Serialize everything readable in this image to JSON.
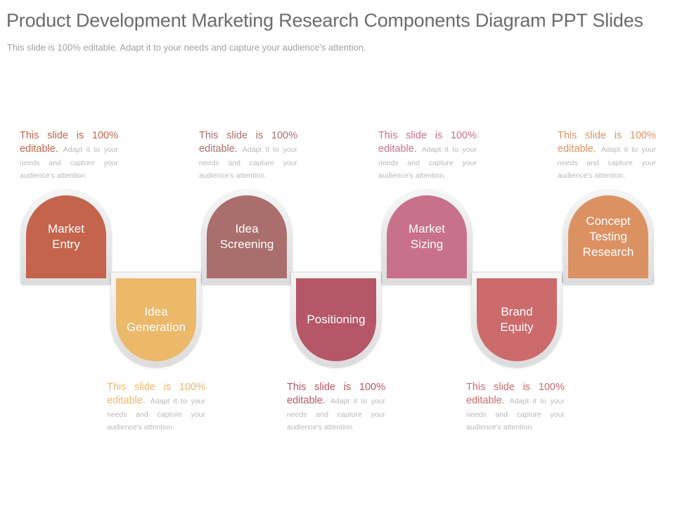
{
  "header": {
    "title": "Product Development Marketing Research Components Diagram PPT Slides",
    "subtitle": "This slide is 100% editable. Adapt it to your needs and capture your audience's attention."
  },
  "steps": [
    {
      "label": "Market\nEntry",
      "color": "#c4644c",
      "desc_lead": "This slide is 100% editable.",
      "desc_rest": "Adapt it to your needs and capture your audience's attention."
    },
    {
      "label": "Idea\nGeneration",
      "color": "#ecb86a",
      "desc_lead": "This slide is 100% editable.",
      "desc_rest": "Adapt it to your needs and capture your audience's attention."
    },
    {
      "label": "Idea\nScreening",
      "color": "#aa6e6c",
      "desc_lead": "This slide is 100% editable.",
      "desc_rest": "Adapt it to your needs and capture your audience's attention."
    },
    {
      "label": "Positioning",
      "color": "#b55766",
      "desc_lead": "This slide is 100% editable.",
      "desc_rest": "Adapt it to your needs and capture your audience's attention."
    },
    {
      "label": "Market\nSizing",
      "color": "#c8718a",
      "desc_lead": "This slide is 100% editable.",
      "desc_rest": "Adapt it to your needs and capture your audience's attention."
    },
    {
      "label": "Brand\nEquity",
      "color": "#cc6b6b",
      "desc_lead": "This slide is 100% editable.",
      "desc_rest": "Adapt it to your needs and capture your audience's attention."
    },
    {
      "label": "Concept\nTesting\nResearch",
      "color": "#dc9163",
      "desc_lead": "This slide is 100% editable.",
      "desc_rest": "Adapt it to your needs and capture your audience's attention."
    }
  ]
}
